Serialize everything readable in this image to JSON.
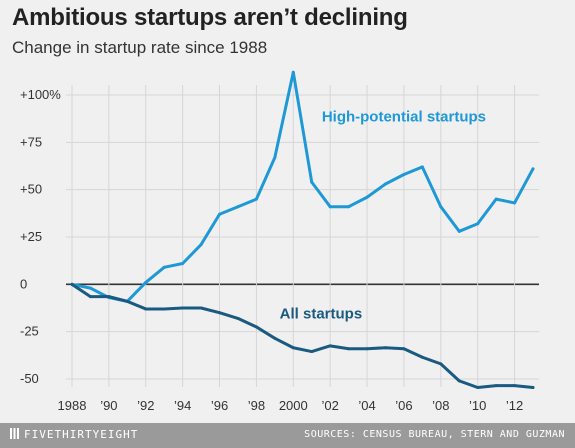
{
  "header": {
    "title": "Ambitious startups aren’t declining",
    "subtitle": "Change in startup rate since 1988"
  },
  "footer": {
    "brand": "FIVETHIRTYEIGHT",
    "sources": "SOURCES: CENSUS BUREAU, STERN AND GUZMAN"
  },
  "colors": {
    "background": "#f0f0f0",
    "grid": "#d6d6d6",
    "zero_line": "#333333",
    "high_potential": "#1f98d6",
    "all_startups": "#1a5a80",
    "footer": "#9a9a9a"
  },
  "icons": {
    "brand": "fivethirtyeight-logo-icon"
  },
  "chart_data": {
    "type": "line",
    "title": "Ambitious startups aren’t declining",
    "subtitle": "Change in startup rate since 1988",
    "xlabel": "",
    "ylabel": "",
    "x": [
      1988,
      1989,
      1990,
      1991,
      1992,
      1993,
      1994,
      1995,
      1996,
      1997,
      1998,
      1999,
      2000,
      2001,
      2002,
      2003,
      2004,
      2005,
      2006,
      2007,
      2008,
      2009,
      2010,
      2011,
      2012,
      2013
    ],
    "xlim": [
      1988,
      2013
    ],
    "ylim": [
      -55,
      115
    ],
    "grid": true,
    "y_ticks": [
      {
        "value": 100,
        "label": "+100%"
      },
      {
        "value": 75,
        "label": "+75"
      },
      {
        "value": 50,
        "label": "+50"
      },
      {
        "value": 25,
        "label": "+25"
      },
      {
        "value": 0,
        "label": "0"
      },
      {
        "value": -25,
        "label": "-25"
      },
      {
        "value": -50,
        "label": "-50"
      }
    ],
    "x_ticks": [
      {
        "value": 1988,
        "label": "1988"
      },
      {
        "value": 1990,
        "label": "’90"
      },
      {
        "value": 1992,
        "label": "’92"
      },
      {
        "value": 1994,
        "label": "’94"
      },
      {
        "value": 1996,
        "label": "’96"
      },
      {
        "value": 1998,
        "label": "’98"
      },
      {
        "value": 2000,
        "label": "2000"
      },
      {
        "value": 2002,
        "label": "’02"
      },
      {
        "value": 2004,
        "label": "’04"
      },
      {
        "value": 2006,
        "label": "’06"
      },
      {
        "value": 2008,
        "label": "’08"
      },
      {
        "value": 2010,
        "label": "’10"
      },
      {
        "value": 2012,
        "label": "’12"
      }
    ],
    "series": [
      {
        "name": "High-potential startups",
        "color": "#1f98d6",
        "label_anchor": [
          2006,
          86
        ],
        "values": [
          0,
          -2,
          -7,
          -9,
          1,
          9,
          11,
          21,
          37,
          41,
          45,
          67,
          112,
          54,
          41,
          41,
          46,
          53,
          58,
          62,
          41,
          28,
          32,
          45,
          43,
          61
        ]
      },
      {
        "name": "All startups",
        "color": "#1a5a80",
        "label_anchor": [
          2001.5,
          -18
        ],
        "values": [
          0,
          -6.5,
          -6.5,
          -9,
          -13,
          -13,
          -12.5,
          -12.5,
          -15,
          -18,
          -22.5,
          -28.5,
          -33.5,
          -35.5,
          -32.5,
          -34,
          -34,
          -33.5,
          -34,
          -38.5,
          -42,
          -51,
          -54.5,
          -53.5,
          -53.5,
          -54.5
        ]
      }
    ]
  }
}
